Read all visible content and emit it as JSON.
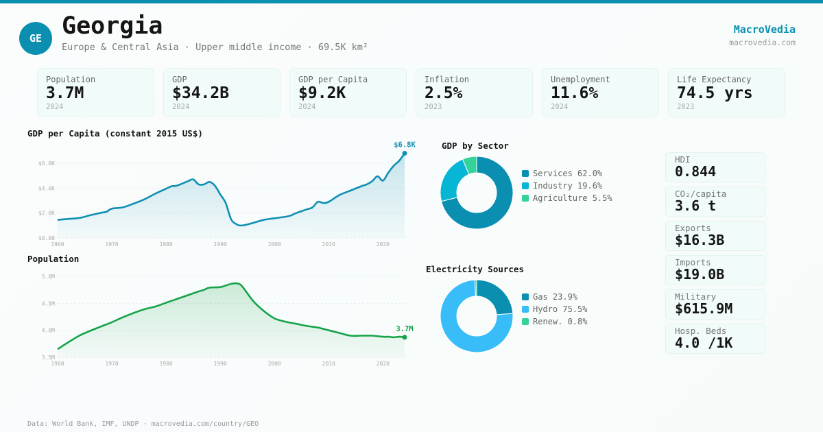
{
  "header": {
    "country_code": "GE",
    "title": "Georgia",
    "subtitle": "Europe & Central Asia · Upper middle income · 69.5K km²",
    "brand": "MacroVedia",
    "brand_url": "macrovedia.com"
  },
  "kpis": [
    {
      "label": "Population",
      "value": "3.7M",
      "year": "2024"
    },
    {
      "label": "GDP",
      "value": "$34.2B",
      "year": "2024"
    },
    {
      "label": "GDP per Capita",
      "value": "$9.2K",
      "year": "2024"
    },
    {
      "label": "Inflation",
      "value": "2.5%",
      "year": "2023"
    },
    {
      "label": "Unemployment",
      "value": "11.6%",
      "year": "2024"
    },
    {
      "label": "Life Expectancy",
      "value": "74.5 yrs",
      "year": "2023"
    }
  ],
  "side_stats": [
    {
      "label": "HDI",
      "value": "0.844"
    },
    {
      "label": "CO₂/capita",
      "value": "3.6 t"
    },
    {
      "label": "Exports",
      "value": "$16.3B"
    },
    {
      "label": "Imports",
      "value": "$19.0B"
    },
    {
      "label": "Military",
      "value": "$615.9M"
    },
    {
      "label": "Hosp. Beds",
      "value": "4.0 /1K"
    }
  ],
  "colors": {
    "accent": "#0a8fb0",
    "gdp_line": "#0e8fb3",
    "pop_line": "#16a34a",
    "services": "#0a8fb0",
    "industry": "#06b6d4",
    "agriculture": "#34d399",
    "gas": "#0a8fb0",
    "hydro": "#38bdf8",
    "renew": "#34d399"
  },
  "chart_data": [
    {
      "type": "area",
      "title": "GDP per Capita (constant 2015 US$)",
      "xlabel": "",
      "ylabel": "",
      "xlim": [
        1960,
        2024
      ],
      "ylim": [
        0,
        6000
      ],
      "x_ticks": [
        1960,
        1970,
        1980,
        1990,
        2000,
        2010,
        2020
      ],
      "y_ticks": [
        0,
        2000,
        4000,
        6000
      ],
      "y_tick_labels": [
        "$0.00",
        "$2.0K",
        "$4.0K",
        "$6.0K"
      ],
      "grid": true,
      "end_label": "$6.8K",
      "x": [
        1960,
        1962,
        1964,
        1966,
        1968,
        1969,
        1970,
        1972,
        1974,
        1976,
        1978,
        1980,
        1981,
        1982,
        1984,
        1985,
        1986,
        1987,
        1988,
        1989,
        1990,
        1991,
        1992,
        1993,
        1994,
        1996,
        1998,
        2000,
        2002,
        2003,
        2004,
        2006,
        2007,
        2008,
        2009,
        2010,
        2012,
        2014,
        2016,
        2017,
        2018,
        2019,
        2020,
        2021,
        2022,
        2023,
        2024
      ],
      "values": [
        1450,
        1530,
        1600,
        1820,
        2020,
        2100,
        2350,
        2450,
        2750,
        3100,
        3550,
        3950,
        4150,
        4200,
        4550,
        4700,
        4300,
        4300,
        4500,
        4200,
        3500,
        2800,
        1500,
        1100,
        1000,
        1200,
        1450,
        1580,
        1700,
        1800,
        2000,
        2300,
        2450,
        2900,
        2800,
        2900,
        3450,
        3800,
        4150,
        4300,
        4550,
        4950,
        4600,
        5250,
        5800,
        6200,
        6800
      ]
    },
    {
      "type": "area",
      "title": "Population",
      "xlabel": "",
      "ylabel": "",
      "xlim": [
        1960,
        2024
      ],
      "ylim": [
        3500000,
        5000000
      ],
      "x_ticks": [
        1960,
        1970,
        1980,
        1990,
        2000,
        2010,
        2020
      ],
      "y_ticks": [
        3500000,
        4000000,
        4500000,
        5000000
      ],
      "y_tick_labels": [
        "3.5M",
        "4.0M",
        "4.5M",
        "5.0M"
      ],
      "grid": true,
      "end_label": "3.7M",
      "x": [
        1960,
        1962,
        1964,
        1966,
        1968,
        1970,
        1972,
        1974,
        1976,
        1978,
        1980,
        1982,
        1984,
        1986,
        1987,
        1988,
        1990,
        1991,
        1992,
        1993,
        1994,
        1996,
        1998,
        2000,
        2002,
        2004,
        2006,
        2008,
        2010,
        2012,
        2014,
        2016,
        2018,
        2020,
        2021,
        2022,
        2023,
        2024
      ],
      "values": [
        3650000,
        3780000,
        3900000,
        3990000,
        4070000,
        4150000,
        4240000,
        4320000,
        4390000,
        4440000,
        4510000,
        4580000,
        4650000,
        4720000,
        4750000,
        4790000,
        4800000,
        4830000,
        4860000,
        4870000,
        4820000,
        4550000,
        4360000,
        4220000,
        4160000,
        4120000,
        4080000,
        4050000,
        4000000,
        3950000,
        3900000,
        3900000,
        3900000,
        3880000,
        3880000,
        3870000,
        3880000,
        3870000
      ]
    },
    {
      "type": "pie",
      "title": "GDP by Sector",
      "donut": true,
      "labels": [
        "Services",
        "Industry",
        "Agriculture"
      ],
      "values": [
        62.0,
        19.6,
        5.5
      ],
      "legend_labels": [
        "Services 62.0%",
        "Industry 19.6%",
        "Agriculture 5.5%"
      ],
      "legend": "right"
    },
    {
      "type": "pie",
      "title": "Electricity Sources",
      "donut": true,
      "labels": [
        "Gas",
        "Hydro",
        "Renew."
      ],
      "values": [
        23.9,
        75.5,
        0.8
      ],
      "legend_labels": [
        "Gas 23.9%",
        "Hydro 75.5%",
        "Renew. 0.8%"
      ],
      "legend": "right"
    }
  ],
  "footer": "Data: World Bank, IMF, UNDP · macrovedia.com/country/GEO"
}
